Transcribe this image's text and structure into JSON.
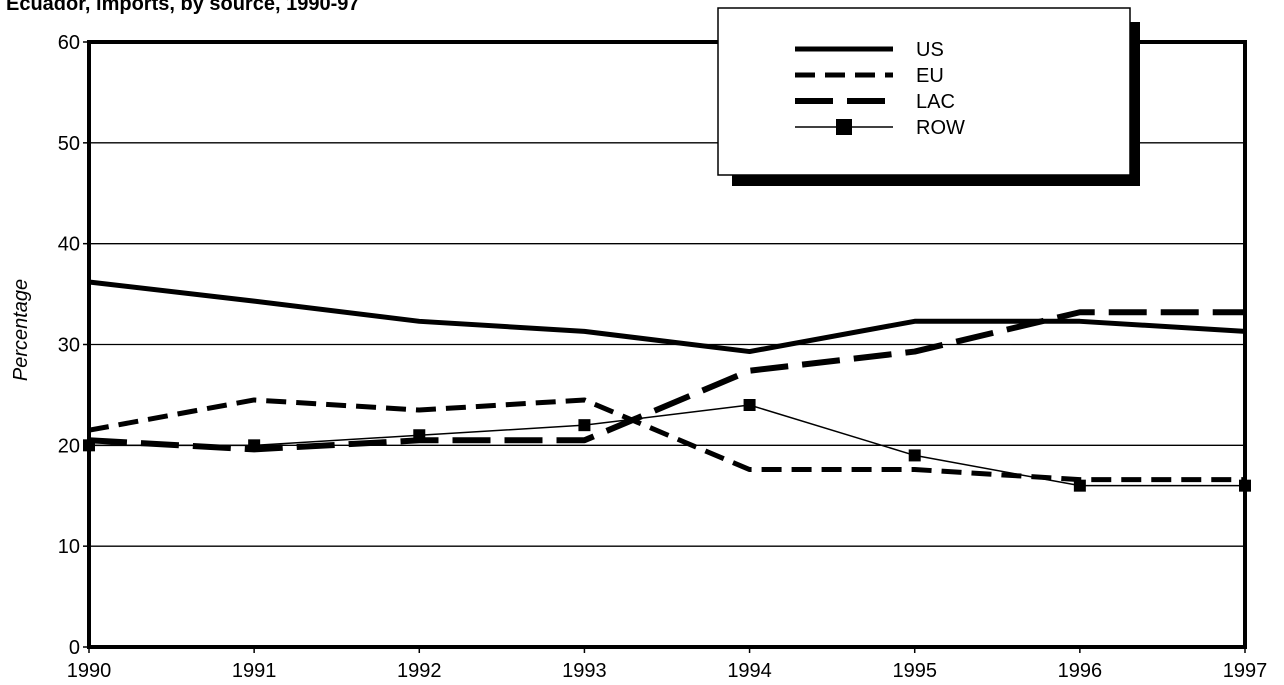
{
  "chart_data": {
    "type": "line",
    "title": "Ecuador, imports, by source, 1990-97",
    "xlabel": "",
    "ylabel": "Percentage",
    "x": [
      1990,
      1991,
      1992,
      1993,
      1994,
      1995,
      1996,
      1997
    ],
    "x_tick_labels": [
      "1990",
      "1991",
      "1992",
      "1993",
      "1994",
      "1995",
      "1996",
      "1997"
    ],
    "ylim": [
      0,
      60
    ],
    "y_ticks": [
      0,
      10,
      20,
      30,
      40,
      50,
      60
    ],
    "y_tick_labels": [
      "0",
      "10",
      "20",
      "30",
      "40",
      "50",
      "60"
    ],
    "grid": true,
    "legend_position": "top-right",
    "series": [
      {
        "name": "US",
        "style": "solid-thick",
        "values": [
          36.2,
          34.3,
          32.3,
          31.3,
          29.3,
          32.3,
          32.3,
          31.3
        ]
      },
      {
        "name": "EU",
        "style": "dashed-short",
        "values": [
          21.5,
          24.5,
          23.5,
          24.5,
          17.6,
          17.6,
          16.6,
          16.6
        ]
      },
      {
        "name": "LAC",
        "style": "dashed-long",
        "values": [
          20.5,
          19.6,
          20.5,
          20.5,
          27.4,
          29.3,
          33.2,
          33.2
        ]
      },
      {
        "name": "ROW",
        "style": "thin-square-markers",
        "values": [
          20.0,
          20.0,
          21.0,
          22.0,
          24.0,
          19.0,
          16.0,
          16.0
        ]
      }
    ],
    "colors": {
      "line": "#000000",
      "background": "#ffffff"
    }
  }
}
